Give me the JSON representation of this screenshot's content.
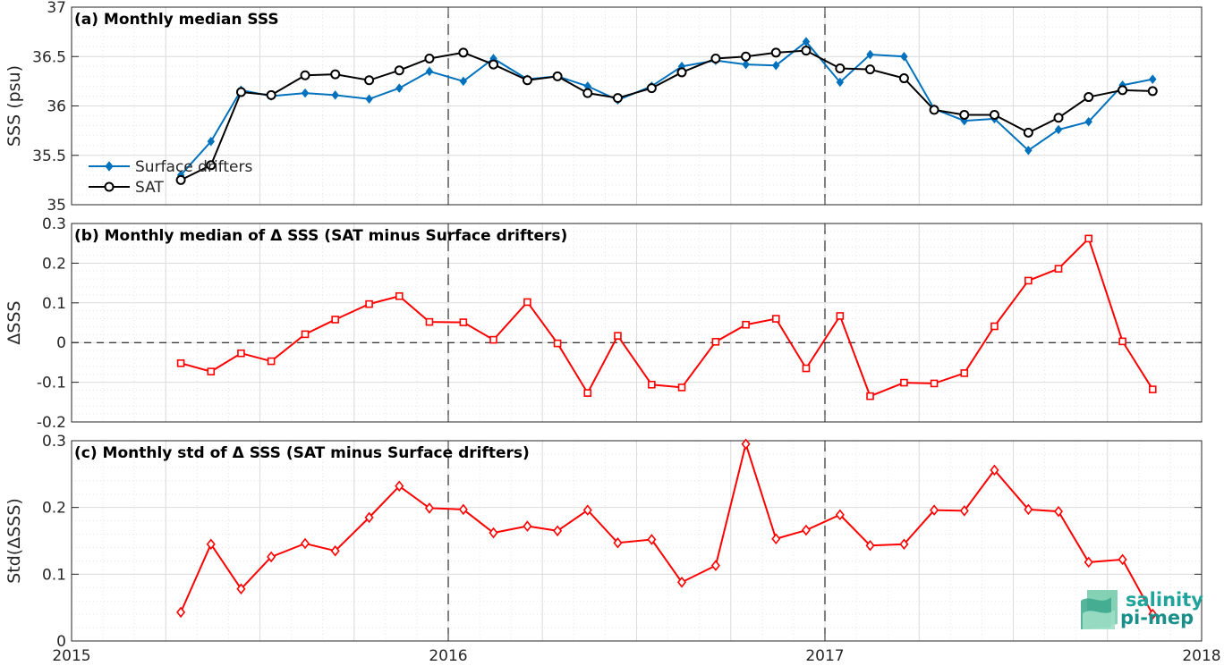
{
  "chart_data": [
    {
      "type": "line",
      "title": "(a) Monthly median SSS",
      "ylabel": "SSS (psu)",
      "xlim": [
        2015,
        2018
      ],
      "ylim": [
        35,
        37
      ],
      "yticks": [
        "35",
        "35.5",
        "36",
        "36.5",
        "37"
      ],
      "grid": true,
      "legend_position": "lower-left",
      "x": [
        2015.29,
        2015.37,
        2015.45,
        2015.53,
        2015.62,
        2015.7,
        2015.79,
        2015.87,
        2015.95,
        2016.04,
        2016.12,
        2016.21,
        2016.29,
        2016.37,
        2016.45,
        2016.54,
        2016.62,
        2016.71,
        2016.79,
        2016.87,
        2016.95,
        2017.04,
        2017.12,
        2017.21,
        2017.29,
        2017.37,
        2017.45,
        2017.54,
        2017.62,
        2017.7,
        2017.79,
        2017.87
      ],
      "series": [
        {
          "name": "Surface drifters",
          "color": "#0072BD",
          "marker": "diamond",
          "values": [
            35.3,
            35.64,
            36.16,
            36.1,
            36.13,
            36.11,
            36.07,
            36.18,
            36.35,
            36.25,
            36.48,
            36.27,
            36.3,
            36.2,
            36.06,
            36.2,
            36.4,
            36.46,
            36.42,
            36.41,
            36.65,
            36.24,
            36.52,
            36.5,
            35.97,
            35.85,
            35.87,
            35.55,
            35.76,
            35.84,
            36.21,
            36.27
          ]
        },
        {
          "name": "SAT",
          "color": "#000000",
          "marker": "circle",
          "values": [
            35.25,
            35.4,
            36.14,
            36.11,
            36.31,
            36.32,
            36.26,
            36.36,
            36.48,
            36.54,
            36.42,
            36.26,
            36.3,
            36.13,
            36.08,
            36.18,
            36.34,
            36.48,
            36.5,
            36.54,
            36.56,
            36.38,
            36.37,
            36.28,
            35.96,
            35.91,
            35.91,
            35.73,
            35.88,
            36.09,
            36.16,
            36.15
          ]
        }
      ]
    },
    {
      "type": "line",
      "title": "(b) Monthly median of Δ SSS (SAT minus Surface drifters)",
      "ylabel": "ΔSSS",
      "xlim": [
        2015,
        2018
      ],
      "ylim": [
        -0.2,
        0.3
      ],
      "yticks": [
        "-0.2",
        "-0.1",
        "0",
        "0.1",
        "0.2",
        "0.3"
      ],
      "grid": true,
      "x": [
        2015.29,
        2015.37,
        2015.45,
        2015.53,
        2015.62,
        2015.7,
        2015.79,
        2015.87,
        2015.95,
        2016.04,
        2016.12,
        2016.21,
        2016.29,
        2016.37,
        2016.45,
        2016.54,
        2016.62,
        2016.71,
        2016.79,
        2016.87,
        2016.95,
        2017.04,
        2017.12,
        2017.21,
        2017.29,
        2017.37,
        2017.45,
        2017.54,
        2017.62,
        2017.7,
        2017.79,
        2017.87
      ],
      "series": [
        {
          "color": "#FF0000",
          "marker": "square",
          "values": [
            -0.052,
            -0.073,
            -0.027,
            -0.047,
            0.021,
            0.058,
            0.097,
            0.117,
            0.052,
            0.051,
            0.007,
            0.102,
            -0.002,
            -0.127,
            0.017,
            -0.106,
            -0.113,
            0.002,
            0.045,
            0.06,
            -0.065,
            0.067,
            -0.135,
            -0.101,
            -0.103,
            -0.077,
            0.041,
            0.156,
            0.186,
            0.262,
            0.003,
            -0.118
          ]
        }
      ]
    },
    {
      "type": "line",
      "title": "(c) Monthly std of Δ SSS (SAT minus Surface drifters)",
      "ylabel": "Std(ΔSSS)",
      "xlim": [
        2015,
        2018
      ],
      "ylim": [
        0,
        0.3
      ],
      "yticks": [
        "0",
        "0.1",
        "0.2",
        "0.3"
      ],
      "xticks": [
        "2015",
        "2016",
        "2017",
        "2018"
      ],
      "grid": true,
      "x": [
        2015.29,
        2015.37,
        2015.45,
        2015.53,
        2015.62,
        2015.7,
        2015.79,
        2015.87,
        2015.95,
        2016.04,
        2016.12,
        2016.21,
        2016.29,
        2016.37,
        2016.45,
        2016.54,
        2016.62,
        2016.71,
        2016.79,
        2016.87,
        2016.95,
        2017.04,
        2017.12,
        2017.21,
        2017.29,
        2017.37,
        2017.45,
        2017.54,
        2017.62,
        2017.7,
        2017.79,
        2017.87
      ],
      "series": [
        {
          "color": "#FF0000",
          "marker": "diamond",
          "values": [
            0.043,
            0.145,
            0.078,
            0.126,
            0.146,
            0.135,
            0.185,
            0.232,
            0.199,
            0.197,
            0.162,
            0.172,
            0.165,
            0.196,
            0.147,
            0.152,
            0.088,
            0.113,
            0.295,
            0.153,
            0.166,
            0.189,
            0.143,
            0.145,
            0.196,
            0.195,
            0.256,
            0.197,
            0.194,
            0.118,
            0.122,
            0.04
          ]
        }
      ]
    }
  ],
  "logo": {
    "line1": "salinity",
    "line2": "pi-mep"
  }
}
